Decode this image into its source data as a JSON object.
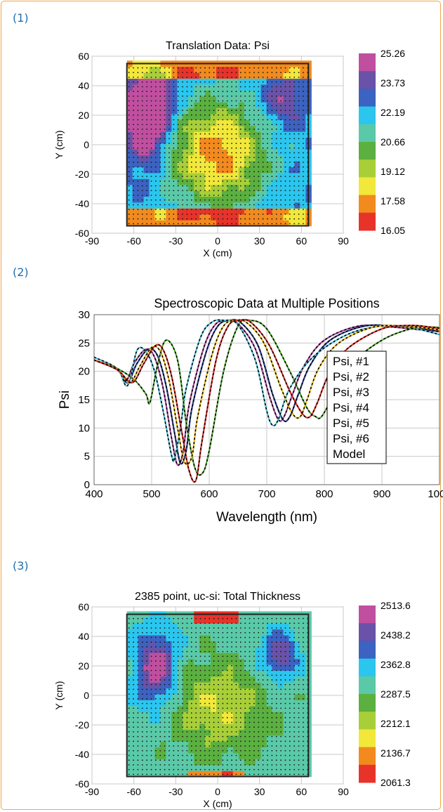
{
  "panels": [
    {
      "label": "(1)",
      "chart_data": {
        "type": "heatmap",
        "title": "Translation Data: Psi",
        "xlabel": "X (cm)",
        "ylabel": "Y (cm)",
        "xlim": [
          -90,
          90
        ],
        "ylim": [
          -60,
          60
        ],
        "xticks": [
          "-90",
          "-30",
          "0",
          "30",
          "60",
          "90"
        ],
        "xtick_values": [
          -90,
          -30,
          0,
          30,
          60,
          90
        ],
        "xtick_minor_values": [
          -60
        ],
        "xtick_minor_labels": [
          "-60"
        ],
        "yticks": [
          "60",
          "40",
          "20",
          "0",
          "-20",
          "-40",
          "-60"
        ],
        "ytick_values": [
          60,
          40,
          20,
          0,
          -20,
          -40,
          -60
        ],
        "sample_region": {
          "x": [
            -65,
            65
          ],
          "y": [
            -55,
            55
          ]
        },
        "colorbar": {
          "labels": [
            "25.26",
            "23.73",
            "22.19",
            "20.66",
            "19.12",
            "17.58",
            "16.05"
          ],
          "colors": [
            "#c04fa0",
            "#6a52a8",
            "#3c62c2",
            "#2bc6ee",
            "#5ac9a8",
            "#5bb040",
            "#a8cf38",
            "#f2e83a",
            "#f28a1e",
            "#e8332a"
          ]
        },
        "pattern": "psi",
        "grid": true
      }
    },
    {
      "label": "(2)",
      "chart_data": {
        "type": "line",
        "title": "Spectroscopic Data at Multiple Positions",
        "xlabel": "Wavelength (nm)",
        "ylabel": "Psi",
        "xlim": [
          400,
          1000
        ],
        "ylim": [
          0,
          30
        ],
        "xticks": [
          "400",
          "500",
          "600",
          "700",
          "800",
          "900",
          "1000"
        ],
        "xtick_values": [
          400,
          500,
          600,
          700,
          800,
          900,
          1000
        ],
        "yticks": [
          "0",
          "5",
          "10",
          "15",
          "20",
          "25",
          "30"
        ],
        "ytick_values": [
          0,
          5,
          10,
          15,
          20,
          25,
          30
        ],
        "legend_position": "right",
        "grid": true,
        "series": [
          {
            "name": "Psi, #1",
            "color": "#b0489c",
            "x": [
              400,
              440,
              455,
              470,
              490,
              505,
              520,
              535,
              545,
              555,
              565,
              590,
              610,
              630,
              650,
              680,
              705,
              720,
              730,
              745,
              765,
              800,
              860,
              920,
              960,
              1000
            ],
            "y": [
              22,
              20.5,
              18.3,
              21.5,
              23.9,
              22.5,
              17,
              8,
              3.5,
              6,
              14,
              24,
              28.2,
              29,
              28.4,
              24,
              15.5,
              11.5,
              12,
              16,
              21,
              25.5,
              28,
              27.8,
              27.4,
              27
            ]
          },
          {
            "name": "Psi, #2",
            "color": "#2a3f8f",
            "x": [
              400,
              440,
              458,
              474,
              494,
              510,
              525,
              540,
              550,
              560,
              570,
              595,
              615,
              635,
              655,
              685,
              710,
              728,
              740,
              755,
              775,
              810,
              870,
              930,
              970,
              1000
            ],
            "y": [
              22,
              20.3,
              18,
              21.3,
              23.9,
              22.8,
              17.5,
              9,
              3.8,
              6,
              13.5,
              23.5,
              28,
              29,
              28.6,
              24.5,
              16,
              11.5,
              12,
              16,
              21,
              25.5,
              28,
              27.9,
              27.5,
              27.2
            ]
          },
          {
            "name": "Psi, #3",
            "color": "#52c2d8",
            "x": [
              400,
              440,
              455,
              463,
              475,
              490,
              505,
              520,
              535,
              540,
              550,
              560,
              585,
              605,
              625,
              650,
              680,
              700,
              710,
              720,
              740,
              780,
              840,
              900,
              950,
              1000
            ],
            "y": [
              22.5,
              20.5,
              17.5,
              18.8,
              23.8,
              23.5,
              20,
              13,
              5,
              4.8,
              10,
              17,
              26,
              28.7,
              29,
              28.2,
              22,
              13,
              10.5,
              11.5,
              17,
              22.5,
              26.5,
              28,
              27.7,
              26.5
            ]
          },
          {
            "name": "Psi, #4",
            "color": "#5aaa3c",
            "x": [
              400,
              440,
              470,
              490,
              497,
              510,
              525,
              545,
              560,
              575,
              588,
              600,
              625,
              650,
              670,
              700,
              740,
              770,
              785,
              795,
              815,
              850,
              900,
              950,
              985,
              1000
            ],
            "y": [
              22,
              20.5,
              18.5,
              16,
              14.5,
              21,
              25.5,
              22,
              11,
              3,
              2,
              6,
              20,
              28,
              29,
              27.5,
              20,
              13.5,
              12,
              12,
              15.5,
              21.5,
              25.5,
              27.5,
              27.8,
              27.7
            ]
          },
          {
            "name": "Psi, #5",
            "color": "#f0be1e",
            "x": [
              400,
              440,
              462,
              480,
              500,
              515,
              530,
              545,
              557,
              570,
              580,
              605,
              625,
              645,
              665,
              695,
              725,
              745,
              758,
              770,
              790,
              825,
              885,
              940,
              980,
              1000
            ],
            "y": [
              22,
              20.3,
              18,
              21,
              24.2,
              23.5,
              18.5,
              10,
              4,
              5,
              12,
              23,
              28,
              29,
              28.6,
              25,
              17,
              12.5,
              12,
              15,
              20.5,
              25,
              27.8,
              28,
              27.6,
              27.3
            ]
          },
          {
            "name": "Psi, #6",
            "color": "#e0302a",
            "x": [
              400,
              440,
              466,
              486,
              506,
              520,
              535,
              552,
              565,
              577,
              588,
              612,
              633,
              653,
              673,
              705,
              740,
              762,
              775,
              788,
              808,
              840,
              900,
              950,
              985,
              1000
            ],
            "y": [
              22,
              20.3,
              18,
              21.3,
              24.5,
              23.8,
              19,
              9.5,
              2.5,
              0.8,
              8,
              22,
              28,
              29,
              28.6,
              24.5,
              16.5,
              12.5,
              12,
              14.5,
              19.5,
              24,
              27.5,
              28.1,
              27.8,
              27.6
            ]
          }
        ],
        "legend_extra": "Model"
      }
    },
    {
      "label": "(3)",
      "chart_data": {
        "type": "heatmap",
        "title": "2385 point, uc-si: Total Thickness",
        "xlabel": "X (cm)",
        "ylabel": "Y (cm)",
        "xlim": [
          -90,
          90
        ],
        "ylim": [
          -60,
          60
        ],
        "xticks": [
          "-90",
          "-30",
          "0",
          "30",
          "60",
          "90"
        ],
        "xtick_values": [
          -90,
          -30,
          0,
          30,
          60,
          90
        ],
        "xtick_minor_values": [
          -60
        ],
        "xtick_minor_labels": [
          "-60"
        ],
        "yticks": [
          "60",
          "40",
          "20",
          "0",
          "-20",
          "-40",
          "-60"
        ],
        "ytick_values": [
          60,
          40,
          20,
          0,
          -20,
          -40,
          -60
        ],
        "sample_region": {
          "x": [
            -65,
            65
          ],
          "y": [
            -55,
            55
          ]
        },
        "colorbar": {
          "labels": [
            "2513.6",
            "2438.2",
            "2362.8",
            "2287.5",
            "2212.1",
            "2136.7",
            "2061.3"
          ],
          "colors": [
            "#c04fa0",
            "#6a52a8",
            "#3c62c2",
            "#2bc6ee",
            "#5ac9a8",
            "#5bb040",
            "#a8cf38",
            "#f2e83a",
            "#f28a1e",
            "#e8332a"
          ]
        },
        "pattern": "thickness",
        "grid": true
      }
    }
  ]
}
